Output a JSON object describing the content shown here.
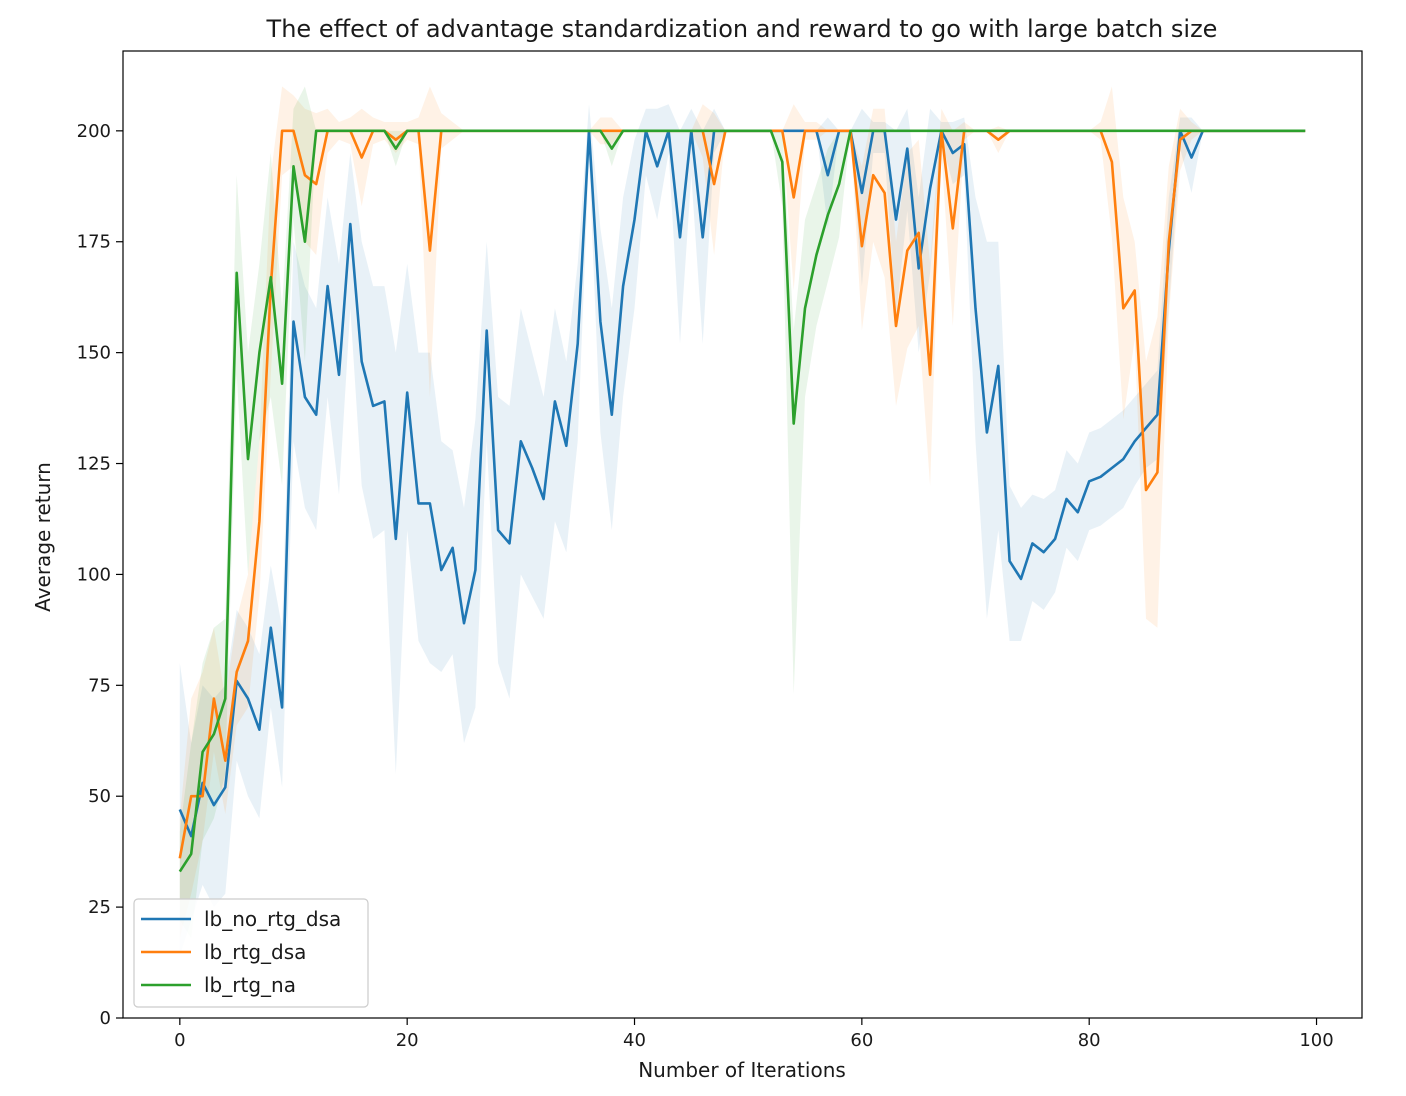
{
  "chart_data": {
    "type": "line",
    "title": "The effect of advantage standardization and reward to go with large batch size",
    "xlabel": "Number of Iterations",
    "ylabel": "Average return",
    "xlim": [
      -5,
      104
    ],
    "ylim": [
      0,
      218
    ],
    "xticks": [
      0,
      20,
      40,
      60,
      80,
      100
    ],
    "yticks": [
      0,
      25,
      50,
      75,
      100,
      125,
      150,
      175,
      200
    ],
    "grid": false,
    "legend_position": "lower-left",
    "series": [
      {
        "name": "lb_no_rtg_dsa",
        "color": "#1f77b4",
        "x": [
          0,
          1,
          2,
          3,
          4,
          5,
          6,
          7,
          8,
          9,
          10,
          11,
          12,
          13,
          14,
          15,
          16,
          17,
          18,
          19,
          20,
          21,
          22,
          23,
          24,
          25,
          26,
          27,
          28,
          29,
          30,
          31,
          32,
          33,
          34,
          35,
          36,
          37,
          38,
          39,
          40,
          41,
          42,
          43,
          44,
          45,
          46,
          47,
          48,
          49,
          50,
          51,
          52,
          53,
          54,
          55,
          56,
          57,
          58,
          59,
          60,
          61,
          62,
          63,
          64,
          65,
          66,
          67,
          68,
          69,
          70,
          71,
          72,
          73,
          74,
          75,
          76,
          77,
          78,
          79,
          80,
          81,
          82,
          83,
          84,
          85,
          86,
          87,
          88,
          89,
          90,
          91,
          92,
          93,
          94,
          95,
          96,
          97,
          98,
          99
        ],
        "y": [
          47,
          41,
          53,
          48,
          52,
          76,
          72,
          65,
          88,
          70,
          157,
          140,
          136,
          165,
          145,
          179,
          148,
          138,
          139,
          108,
          141,
          116,
          116,
          101,
          106,
          89,
          101,
          155,
          110,
          107,
          130,
          124,
          117,
          139,
          129,
          152,
          200,
          157,
          136,
          165,
          180,
          200,
          192,
          200,
          176,
          200,
          176,
          200,
          200,
          200,
          200,
          200,
          200,
          200,
          200,
          200,
          200,
          190,
          200,
          200,
          186,
          200,
          200,
          180,
          196,
          169,
          187,
          200,
          195,
          197,
          160,
          132,
          147,
          103,
          99,
          107,
          105,
          108,
          117,
          114,
          121,
          122,
          124,
          126,
          130,
          133,
          136,
          173,
          200,
          194,
          200,
          200,
          200,
          200,
          200,
          200,
          200,
          200,
          200,
          200
        ],
        "upper": [
          80,
          62,
          75,
          72,
          75,
          92,
          88,
          82,
          102,
          88,
          175,
          165,
          160,
          185,
          170,
          195,
          175,
          165,
          165,
          150,
          170,
          150,
          150,
          130,
          128,
          115,
          135,
          175,
          140,
          138,
          160,
          150,
          140,
          160,
          148,
          170,
          206,
          178,
          160,
          185,
          198,
          205,
          205,
          206,
          200,
          205,
          200,
          205,
          200,
          200,
          200,
          200,
          200,
          200,
          200,
          200,
          200,
          203,
          200,
          200,
          205,
          202,
          202,
          200,
          205,
          185,
          205,
          202,
          202,
          203,
          185,
          175,
          175,
          120,
          115,
          118,
          117,
          119,
          128,
          125,
          132,
          133,
          135,
          137,
          140,
          143,
          146,
          185,
          203,
          203,
          200,
          200,
          200,
          200,
          200,
          200,
          200,
          200,
          200,
          200
        ],
        "lower": [
          14,
          22,
          30,
          25,
          28,
          58,
          50,
          45,
          70,
          52,
          130,
          115,
          110,
          140,
          118,
          160,
          120,
          108,
          110,
          55,
          110,
          85,
          80,
          78,
          82,
          62,
          70,
          130,
          80,
          72,
          100,
          95,
          90,
          112,
          105,
          130,
          194,
          132,
          110,
          140,
          160,
          190,
          180,
          195,
          152,
          190,
          152,
          195,
          200,
          200,
          200,
          200,
          200,
          200,
          200,
          200,
          200,
          178,
          200,
          200,
          165,
          195,
          195,
          158,
          182,
          150,
          168,
          198,
          188,
          190,
          130,
          90,
          110,
          85,
          85,
          94,
          92,
          96,
          106,
          103,
          110,
          111,
          113,
          115,
          120,
          124,
          126,
          160,
          196,
          186,
          200,
          200,
          200,
          200,
          200,
          200,
          200,
          200,
          200,
          200
        ]
      },
      {
        "name": "lb_rtg_dsa",
        "color": "#ff7f0e",
        "x": [
          0,
          1,
          2,
          3,
          4,
          5,
          6,
          7,
          8,
          9,
          10,
          11,
          12,
          13,
          14,
          15,
          16,
          17,
          18,
          19,
          20,
          21,
          22,
          23,
          24,
          25,
          26,
          27,
          28,
          29,
          30,
          31,
          32,
          33,
          34,
          35,
          36,
          37,
          38,
          39,
          40,
          41,
          42,
          43,
          44,
          45,
          46,
          47,
          48,
          49,
          50,
          51,
          52,
          53,
          54,
          55,
          56,
          57,
          58,
          59,
          60,
          61,
          62,
          63,
          64,
          65,
          66,
          67,
          68,
          69,
          70,
          71,
          72,
          73,
          74,
          75,
          76,
          77,
          78,
          79,
          80,
          81,
          82,
          83,
          84,
          85,
          86,
          87,
          88,
          89,
          90,
          91,
          92,
          93,
          94,
          95,
          96,
          97,
          98,
          99
        ],
        "y": [
          36,
          50,
          50,
          72,
          58,
          78,
          85,
          112,
          165,
          200,
          200,
          190,
          188,
          200,
          200,
          200,
          194,
          200,
          200,
          198,
          200,
          200,
          173,
          200,
          200,
          200,
          200,
          200,
          200,
          200,
          200,
          200,
          200,
          200,
          200,
          200,
          200,
          200,
          200,
          200,
          200,
          200,
          200,
          200,
          200,
          200,
          200,
          188,
          200,
          200,
          200,
          200,
          200,
          200,
          185,
          200,
          200,
          200,
          200,
          200,
          174,
          190,
          186,
          156,
          173,
          177,
          145,
          200,
          178,
          200,
          200,
          200,
          198,
          200,
          200,
          200,
          200,
          200,
          200,
          200,
          200,
          200,
          193,
          160,
          164,
          119,
          123,
          175,
          198,
          200,
          200,
          200,
          200,
          200,
          200,
          200,
          200,
          200,
          200,
          200
        ],
        "upper": [
          45,
          72,
          78,
          88,
          72,
          90,
          100,
          130,
          190,
          210,
          208,
          205,
          204,
          205,
          202,
          203,
          205,
          203,
          202,
          202,
          202,
          203,
          210,
          204,
          202,
          200,
          200,
          200,
          200,
          200,
          200,
          200,
          200,
          200,
          200,
          200,
          200,
          203,
          203,
          200,
          200,
          200,
          200,
          200,
          200,
          200,
          206,
          204,
          200,
          200,
          200,
          200,
          200,
          200,
          206,
          202,
          202,
          200,
          200,
          200,
          192,
          205,
          205,
          175,
          195,
          198,
          170,
          205,
          200,
          202,
          200,
          200,
          201,
          200,
          200,
          200,
          200,
          200,
          200,
          200,
          200,
          202,
          210,
          185,
          175,
          148,
          158,
          192,
          205,
          202,
          200,
          200,
          200,
          200,
          200,
          200,
          200,
          200,
          200,
          200
        ],
        "lower": [
          18,
          28,
          40,
          60,
          46,
          66,
          70,
          95,
          145,
          190,
          192,
          175,
          172,
          195,
          198,
          197,
          183,
          197,
          198,
          195,
          198,
          197,
          140,
          196,
          198,
          200,
          200,
          200,
          200,
          200,
          200,
          200,
          200,
          200,
          200,
          200,
          200,
          197,
          197,
          200,
          200,
          200,
          200,
          200,
          200,
          200,
          194,
          172,
          200,
          200,
          200,
          200,
          200,
          200,
          164,
          198,
          198,
          200,
          200,
          200,
          155,
          175,
          167,
          138,
          151,
          156,
          120,
          195,
          156,
          198,
          200,
          200,
          195,
          200,
          200,
          200,
          200,
          200,
          200,
          200,
          200,
          198,
          176,
          135,
          153,
          90,
          88,
          158,
          191,
          198,
          200,
          200,
          200,
          200,
          200,
          200,
          200,
          200,
          200,
          200
        ]
      },
      {
        "name": "lb_rtg_na",
        "color": "#2ca02c",
        "x": [
          0,
          1,
          2,
          3,
          4,
          5,
          6,
          7,
          8,
          9,
          10,
          11,
          12,
          13,
          14,
          15,
          16,
          17,
          18,
          19,
          20,
          21,
          22,
          23,
          24,
          25,
          26,
          27,
          28,
          29,
          30,
          31,
          32,
          33,
          34,
          35,
          36,
          37,
          38,
          39,
          40,
          41,
          42,
          43,
          44,
          45,
          46,
          47,
          48,
          49,
          50,
          51,
          52,
          53,
          54,
          55,
          56,
          57,
          58,
          59,
          60,
          61,
          62,
          63,
          64,
          65,
          66,
          67,
          68,
          69,
          70,
          71,
          72,
          73,
          74,
          75,
          76,
          77,
          78,
          79,
          80,
          81,
          82,
          83,
          84,
          85,
          86,
          87,
          88,
          89,
          90,
          91,
          92,
          93,
          94,
          95,
          96,
          97,
          98,
          99
        ],
        "y": [
          33,
          37,
          60,
          64,
          72,
          168,
          126,
          150,
          167,
          143,
          192,
          175,
          200,
          200,
          200,
          200,
          200,
          200,
          200,
          196,
          200,
          200,
          200,
          200,
          200,
          200,
          200,
          200,
          200,
          200,
          200,
          200,
          200,
          200,
          200,
          200,
          200,
          200,
          196,
          200,
          200,
          200,
          200,
          200,
          200,
          200,
          200,
          200,
          200,
          200,
          200,
          200,
          200,
          193,
          134,
          160,
          172,
          181,
          188,
          200,
          200,
          200,
          200,
          200,
          200,
          200,
          200,
          200,
          200,
          200,
          200,
          200,
          200,
          200,
          200,
          200,
          200,
          200,
          200,
          200,
          200,
          200,
          200,
          200,
          200,
          200,
          200,
          200,
          200,
          200,
          200,
          200,
          200,
          200,
          200,
          200,
          200,
          200,
          200,
          200
        ],
        "upper": [
          42,
          62,
          80,
          88,
          90,
          190,
          150,
          170,
          195,
          160,
          205,
          210,
          200,
          200,
          200,
          200,
          200,
          200,
          200,
          200,
          200,
          200,
          200,
          200,
          200,
          200,
          200,
          200,
          200,
          200,
          200,
          200,
          200,
          200,
          200,
          200,
          200,
          200,
          200,
          200,
          200,
          200,
          200,
          200,
          200,
          200,
          200,
          200,
          200,
          200,
          200,
          200,
          200,
          200,
          155,
          180,
          188,
          196,
          200,
          200,
          200,
          200,
          200,
          200,
          200,
          200,
          200,
          200,
          200,
          200,
          200,
          200,
          200,
          200,
          200,
          200,
          200,
          200,
          200,
          200,
          200,
          200,
          200,
          200,
          200,
          200,
          200,
          200,
          200,
          200,
          200,
          200,
          200,
          200,
          200,
          200,
          200,
          200,
          200,
          200
        ],
        "lower": [
          22,
          18,
          40,
          45,
          55,
          145,
          100,
          130,
          140,
          120,
          180,
          148,
          200,
          200,
          200,
          200,
          200,
          200,
          200,
          192,
          200,
          200,
          200,
          200,
          200,
          200,
          200,
          200,
          200,
          200,
          200,
          200,
          200,
          200,
          200,
          200,
          200,
          200,
          192,
          200,
          200,
          200,
          200,
          200,
          200,
          200,
          200,
          200,
          200,
          200,
          200,
          200,
          200,
          183,
          73,
          140,
          156,
          166,
          176,
          200,
          200,
          200,
          200,
          200,
          200,
          200,
          200,
          200,
          200,
          200,
          200,
          200,
          200,
          200,
          200,
          200,
          200,
          200,
          200,
          200,
          200,
          200,
          200,
          200,
          200,
          200,
          200,
          200,
          200,
          200,
          200,
          200,
          200,
          200,
          200,
          200,
          200,
          200,
          200,
          200
        ]
      }
    ]
  }
}
